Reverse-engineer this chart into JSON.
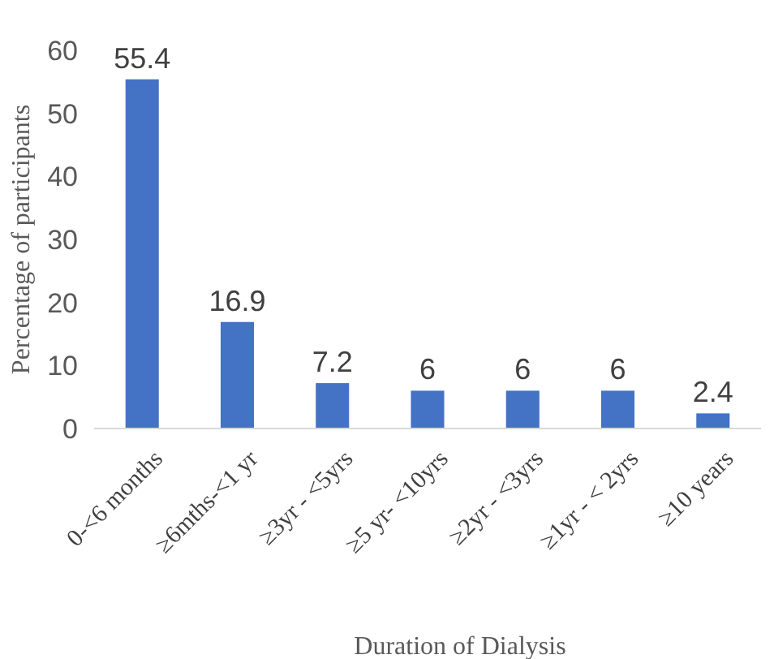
{
  "chart_data": {
    "type": "bar",
    "xlabel": "Duration of Dialysis",
    "ylabel": "Percentage  of participants",
    "categories": [
      "0-<6 months",
      "≥6mths-<1 yr",
      "≥3yr - <5yrs",
      "≥5 yr- <10yrs",
      "≥2yr - <3yrs",
      "≥1yr - < 2yrs",
      "≥10 years"
    ],
    "values": [
      55.4,
      16.9,
      7.2,
      6,
      6,
      6,
      2.4
    ],
    "color": "#4472c4",
    "ylim": [
      0,
      60
    ],
    "yticks": [
      0,
      10,
      20,
      30,
      40,
      50,
      60
    ],
    "grid": false,
    "data_labels": true
  }
}
